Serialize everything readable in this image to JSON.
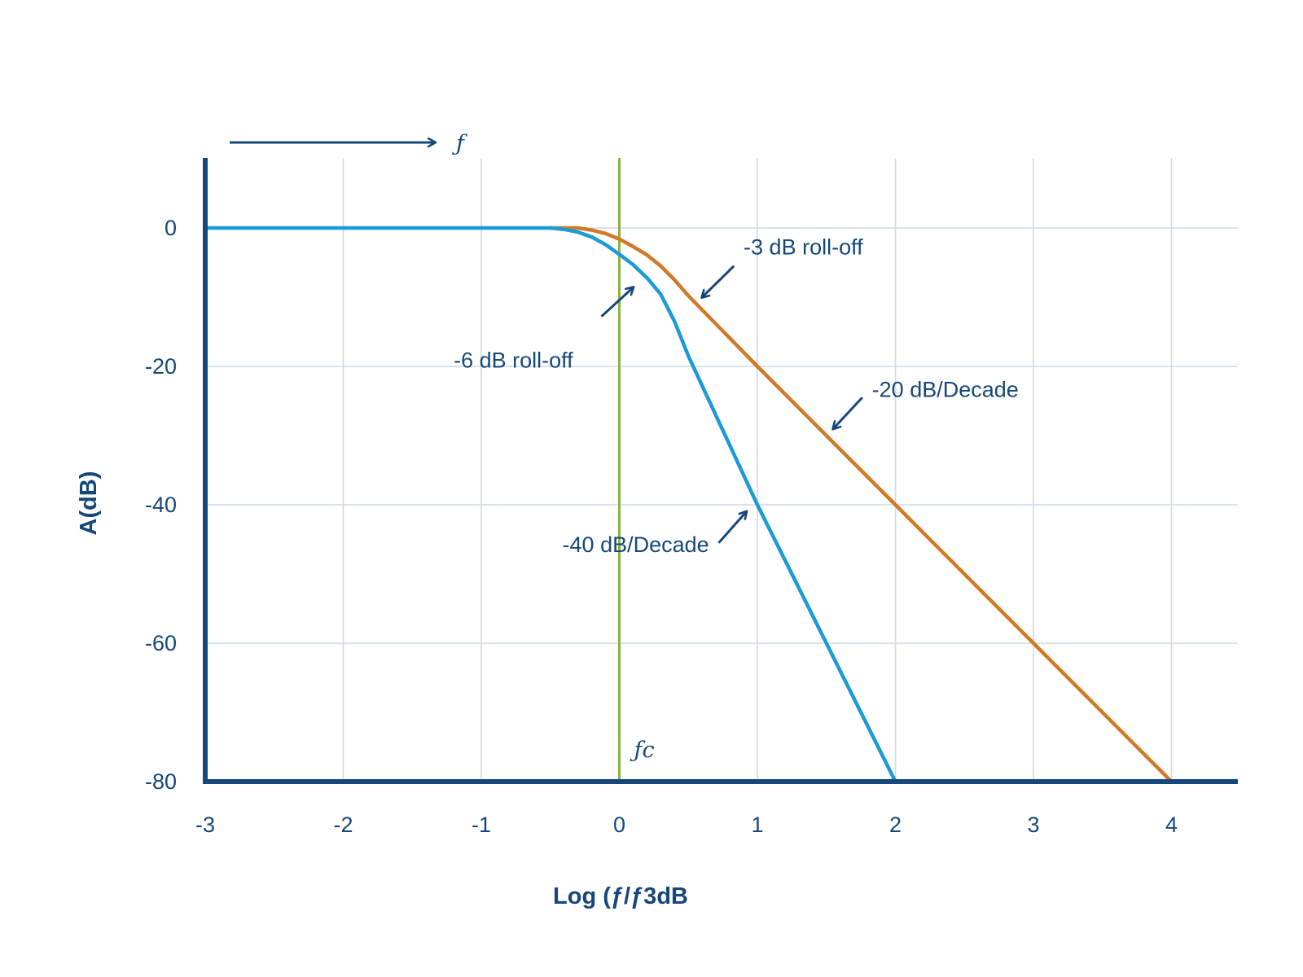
{
  "chart_data": {
    "type": "line",
    "xlabel": "Log (ƒ/ƒ3dB",
    "ylabel": "A(dB)",
    "xlim": [
      -3,
      4.5
    ],
    "ylim": [
      -80,
      10
    ],
    "x_ticks": [
      -3,
      -2,
      -1,
      0,
      1,
      2,
      3,
      4
    ],
    "y_ticks": [
      0,
      -20,
      -40,
      -60,
      -80
    ],
    "grid": true,
    "direction_label": "ƒ",
    "cutoff": {
      "x": 0,
      "label": "ƒc",
      "color": "#8ab33e"
    },
    "colors": {
      "axis": "#16477a",
      "grid": "#cfd9ea",
      "text": "#16477a"
    },
    "series": [
      {
        "color": "#1c9ad8",
        "points": [
          [
            -3,
            0
          ],
          [
            -0.5,
            0
          ],
          [
            -0.4,
            -0.2
          ],
          [
            -0.3,
            -0.6
          ],
          [
            -0.2,
            -1.3
          ],
          [
            -0.1,
            -2.4
          ],
          [
            0,
            -3.8
          ],
          [
            0.1,
            -5.3
          ],
          [
            0.2,
            -7.2
          ],
          [
            0.3,
            -9.6
          ],
          [
            0.4,
            -13.5
          ],
          [
            0.5,
            -18.5
          ],
          [
            1,
            -40
          ],
          [
            2,
            -80
          ]
        ]
      },
      {
        "color": "#cf7a28",
        "points": [
          [
            -0.5,
            0
          ],
          [
            -0.3,
            0
          ],
          [
            -0.2,
            -0.3
          ],
          [
            -0.1,
            -0.8
          ],
          [
            0,
            -1.6
          ],
          [
            0.1,
            -2.7
          ],
          [
            0.2,
            -3.9
          ],
          [
            0.3,
            -5.5
          ],
          [
            0.4,
            -7.5
          ],
          [
            0.5,
            -9.8
          ],
          [
            1,
            -20
          ],
          [
            2,
            -40
          ],
          [
            3,
            -60
          ],
          [
            4,
            -80
          ]
        ]
      }
    ],
    "annotations": [
      {
        "text": "-3 dB roll-off",
        "tx": 0.9,
        "ty": -3.8,
        "anchor": "start",
        "ax1": 0.83,
        "ay1": -5.5,
        "ax2": 0.6,
        "ay2": -10
      },
      {
        "text": "-6 dB roll-off",
        "tx": -1.2,
        "ty": -20.2,
        "anchor": "start",
        "ax1": -0.13,
        "ay1": -12.8,
        "ax2": 0.1,
        "ay2": -8.6
      },
      {
        "text": "-20 dB/Decade",
        "tx": 1.83,
        "ty": -24.4,
        "anchor": "start",
        "ax1": 1.76,
        "ay1": -24.5,
        "ax2": 1.55,
        "ay2": -29
      },
      {
        "text": "-40 dB/Decade",
        "tx": 0.65,
        "ty": -46.8,
        "anchor": "end",
        "ax1": 0.72,
        "ay1": -45.5,
        "ax2": 0.92,
        "ay2": -41
      }
    ]
  }
}
